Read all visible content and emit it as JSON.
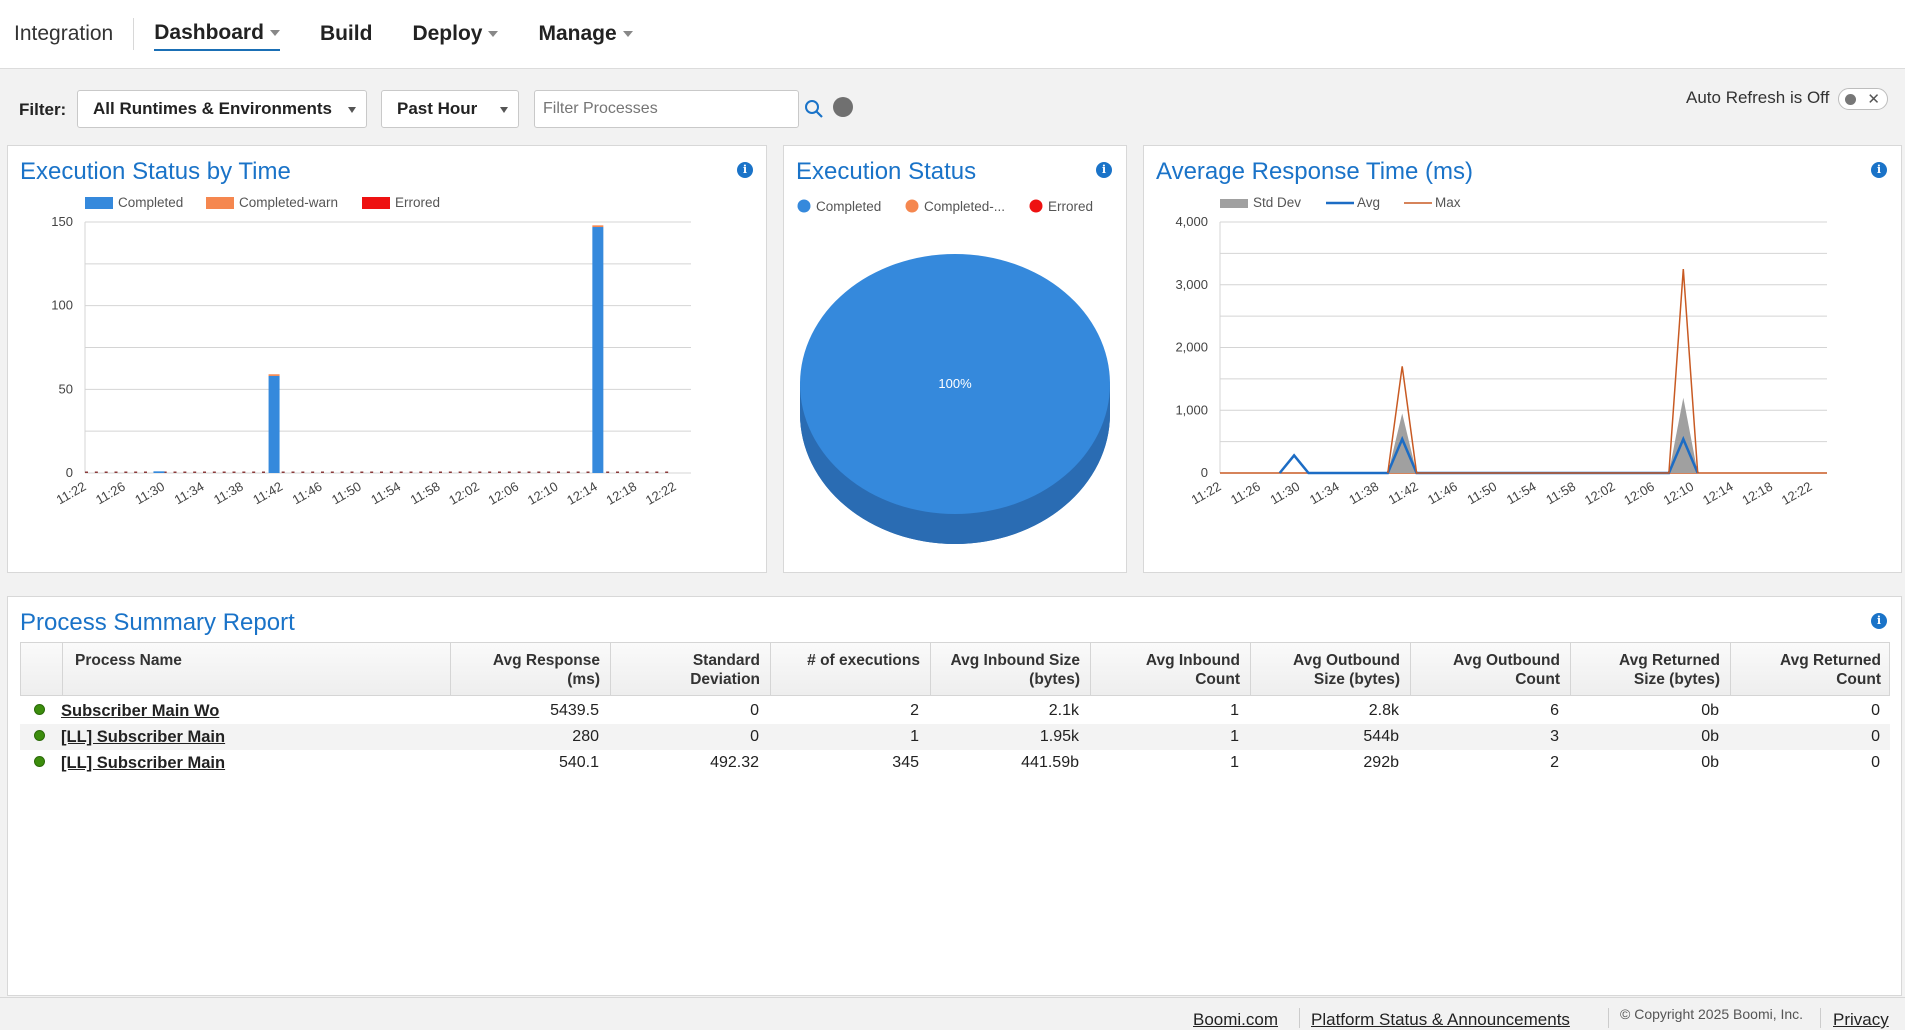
{
  "nav": {
    "brand": "Integration",
    "items": [
      {
        "label": "Dashboard",
        "has_menu": true,
        "active": true
      },
      {
        "label": "Build",
        "has_menu": false,
        "active": false
      },
      {
        "label": "Deploy",
        "has_menu": true,
        "active": false
      },
      {
        "label": "Manage",
        "has_menu": true,
        "active": false
      }
    ]
  },
  "filter": {
    "label": "Filter:",
    "runtime": "All Runtimes & Environments",
    "time": "Past Hour",
    "search_placeholder": "Filter Processes",
    "auto_refresh": "Auto Refresh is Off",
    "search_icon": "search-icon"
  },
  "panels": {
    "status_by_time": {
      "title": "Execution Status by Time"
    },
    "status": {
      "title": "Execution Status"
    },
    "response": {
      "title": "Average Response Time (ms)"
    },
    "summary": {
      "title": "Process Summary Report"
    }
  },
  "chart_data": [
    {
      "type": "bar",
      "stacked": true,
      "categories": [
        "11:22",
        "11:26",
        "11:30",
        "11:34",
        "11:38",
        "11:42",
        "11:46",
        "11:50",
        "11:54",
        "11:58",
        "12:02",
        "12:06",
        "12:10",
        "12:14",
        "12:18",
        "12:22"
      ],
      "x_minutes_from_1122": [
        0,
        26,
        28,
        82
      ],
      "series": [
        {
          "name": "Completed",
          "color": "#3589dc",
          "points": [
            [
              10,
              1
            ],
            [
              26,
              58
            ],
            [
              71,
              147
            ]
          ]
        },
        {
          "name": "Completed-warn",
          "color": "#f5874f",
          "points": [
            [
              26,
              1
            ],
            [
              71,
              1
            ]
          ]
        },
        {
          "name": "Errored",
          "color": "#ee1111",
          "points": []
        }
      ],
      "yticks": [
        0,
        50,
        100,
        150
      ],
      "ylim": [
        0,
        150
      ],
      "legend": "top-left"
    },
    {
      "type": "pie",
      "labels": [
        "Completed",
        "Completed-...",
        "Errored"
      ],
      "colors": [
        "#3589dc",
        "#f5874f",
        "#ee1111"
      ],
      "values": [
        100,
        0,
        0
      ],
      "slice_label": "100%",
      "legend": "top"
    },
    {
      "type": "line",
      "categories": [
        "11:22",
        "11:26",
        "11:30",
        "11:34",
        "11:38",
        "11:42",
        "11:46",
        "11:50",
        "11:54",
        "11:58",
        "12:02",
        "12:06",
        "12:10",
        "12:14",
        "12:18",
        "12:22"
      ],
      "series": [
        {
          "name": "Std Dev",
          "color": "#a0a0a0",
          "kind": "area",
          "points": [
            [
              23,
              0
            ],
            [
              25,
              950
            ],
            [
              27,
              0
            ],
            [
              62,
              0
            ],
            [
              64,
              1200
            ],
            [
              66,
              0
            ]
          ]
        },
        {
          "name": "Avg",
          "color": "#1c6cc4",
          "kind": "line",
          "points": [
            [
              8,
              0
            ],
            [
              10,
              280
            ],
            [
              12,
              0
            ],
            [
              23,
              0
            ],
            [
              25,
              540
            ],
            [
              27,
              0
            ],
            [
              62,
              0
            ],
            [
              64,
              540
            ],
            [
              66,
              0
            ]
          ]
        },
        {
          "name": "Max",
          "color": "#c85a23",
          "kind": "line",
          "points": [
            [
              23,
              0
            ],
            [
              25,
              1700
            ],
            [
              27,
              0
            ],
            [
              62,
              0
            ],
            [
              64,
              3250
            ],
            [
              66,
              0
            ]
          ]
        }
      ],
      "yticks": [
        "0",
        "1,000",
        "2,000",
        "3,000",
        "4,000"
      ],
      "ylim": [
        0,
        4000
      ],
      "legend": "top-left"
    }
  ],
  "table": {
    "columns": [
      {
        "label1": "Process Name",
        "label2": ""
      },
      {
        "label1": "Avg Response",
        "label2": "(ms)"
      },
      {
        "label1": "Standard",
        "label2": "Deviation"
      },
      {
        "label1": "# of executions",
        "label2": ""
      },
      {
        "label1": "Avg Inbound Size",
        "label2": "(bytes)"
      },
      {
        "label1": "Avg Inbound",
        "label2": "Count"
      },
      {
        "label1": "Avg Outbound",
        "label2": "Size (bytes)"
      },
      {
        "label1": "Avg Outbound",
        "label2": "Count"
      },
      {
        "label1": "Avg Returned",
        "label2": "Size (bytes)"
      },
      {
        "label1": "Avg Returned",
        "label2": "Count"
      }
    ],
    "rows": [
      {
        "name": "Subscriber Main Wo",
        "cells": [
          "5439.5",
          "0",
          "2",
          "2.1k",
          "1",
          "2.8k",
          "6",
          "0b",
          "0"
        ]
      },
      {
        "name": "[LL] Subscriber Main",
        "cells": [
          "280",
          "0",
          "1",
          "1.95k",
          "1",
          "544b",
          "3",
          "0b",
          "0"
        ]
      },
      {
        "name": "[LL] Subscriber Main",
        "cells": [
          "540.1",
          "492.32",
          "345",
          "441.59b",
          "1",
          "292b",
          "2",
          "0b",
          "0"
        ]
      }
    ]
  },
  "footer": {
    "links": [
      "Boomi.com",
      "Platform Status & Announcements"
    ],
    "copyright": "© Copyright 2025 Boomi, Inc.",
    "privacy": "Privacy"
  }
}
